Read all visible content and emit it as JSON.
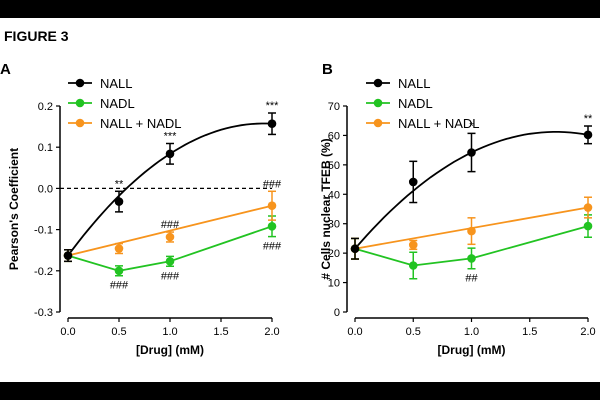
{
  "figure_title": "FIGURE 3",
  "colors": {
    "NALL": "#000000",
    "NADL": "#22c322",
    "NALL + NADL": "#f7941d"
  },
  "chart_data": [
    {
      "type": "line",
      "panel": "A",
      "xlabel": "[Drug] (mM)",
      "ylabel": "Pearson's Coefficient",
      "xlim": [
        0,
        2
      ],
      "ylim": [
        -0.3,
        0.2
      ],
      "xticks": [
        "0.0",
        "0.5",
        "1.0",
        "1.5",
        "2.0"
      ],
      "yticks": [
        "-0.3",
        "-0.2",
        "-0.1",
        "0.0",
        "0.1",
        "0.2"
      ],
      "reference_line": {
        "y": 0,
        "style": "dashed"
      },
      "x": [
        0,
        0.5,
        1.0,
        2.0
      ],
      "series": [
        {
          "name": "NALL",
          "values": [
            -0.163,
            -0.032,
            0.084,
            0.157
          ],
          "errors": [
            0.014,
            0.025,
            0.025,
            0.026
          ],
          "fit": "curve"
        },
        {
          "name": "NADL",
          "values": [
            -0.163,
            -0.2,
            -0.177,
            -0.092
          ],
          "errors": [
            0.014,
            0.012,
            0.012,
            0.025
          ],
          "fit": "segments"
        },
        {
          "name": "NALL + NADL",
          "values": [
            -0.163,
            -0.146,
            -0.118,
            -0.042
          ],
          "errors": [
            0.014,
            0.012,
            0.012,
            0.035
          ],
          "fit": "straight"
        }
      ],
      "annotations": [
        {
          "x": 0.5,
          "y": -0.032,
          "series": "NALL",
          "text": "**",
          "position": "above"
        },
        {
          "x": 1.0,
          "y": 0.084,
          "series": "NALL",
          "text": "***",
          "position": "above"
        },
        {
          "x": 2.0,
          "y": 0.157,
          "series": "NALL",
          "text": "***",
          "position": "above"
        },
        {
          "x": 0.5,
          "y": -0.2,
          "series": "NADL",
          "text": "###",
          "position": "below"
        },
        {
          "x": 1.0,
          "y": -0.177,
          "series": "NADL",
          "text": "###",
          "position": "below"
        },
        {
          "x": 2.0,
          "y": -0.092,
          "series": "NADL",
          "text": "###",
          "position": "below"
        },
        {
          "x": 1.0,
          "y": -0.118,
          "series": "NALL + NADL",
          "text": "###",
          "position": "above"
        },
        {
          "x": 2.0,
          "y": -0.042,
          "series": "NALL + NADL",
          "text": "###",
          "position": "above"
        }
      ]
    },
    {
      "type": "line",
      "panel": "B",
      "xlabel": "[Drug] (mM)",
      "ylabel": "# Cells nuclear TFEB (%)",
      "xlim": [
        0,
        2
      ],
      "ylim": [
        0,
        70
      ],
      "xticks": [
        "0.0",
        "0.5",
        "1.0",
        "1.5",
        "2.0"
      ],
      "yticks": [
        "0",
        "10",
        "20",
        "30",
        "40",
        "50",
        "60",
        "70"
      ],
      "x": [
        0,
        0.5,
        1.0,
        2.0
      ],
      "series": [
        {
          "name": "NALL",
          "values": [
            21.5,
            44.2,
            54.2,
            60.2
          ],
          "errors": [
            3.5,
            7,
            6.5,
            3
          ],
          "fit": "curve"
        },
        {
          "name": "NADL",
          "values": [
            21.5,
            15.8,
            18.2,
            29.2
          ],
          "errors": [
            3.5,
            4.5,
            3.5,
            3.8
          ],
          "fit": "segments"
        },
        {
          "name": "NALL + NADL",
          "values": [
            21.5,
            22.8,
            27.5,
            35.5
          ],
          "errors": [
            3.5,
            1.5,
            4.5,
            3.5
          ],
          "fit": "straight"
        }
      ],
      "annotations": [
        {
          "x": 1.0,
          "y": 54.2,
          "series": "NALL",
          "text": "*",
          "position": "above"
        },
        {
          "x": 2.0,
          "y": 60.2,
          "series": "NALL",
          "text": "**",
          "position": "above"
        },
        {
          "x": 1.0,
          "y": 18.2,
          "series": "NADL",
          "text": "##",
          "position": "below"
        }
      ]
    }
  ]
}
